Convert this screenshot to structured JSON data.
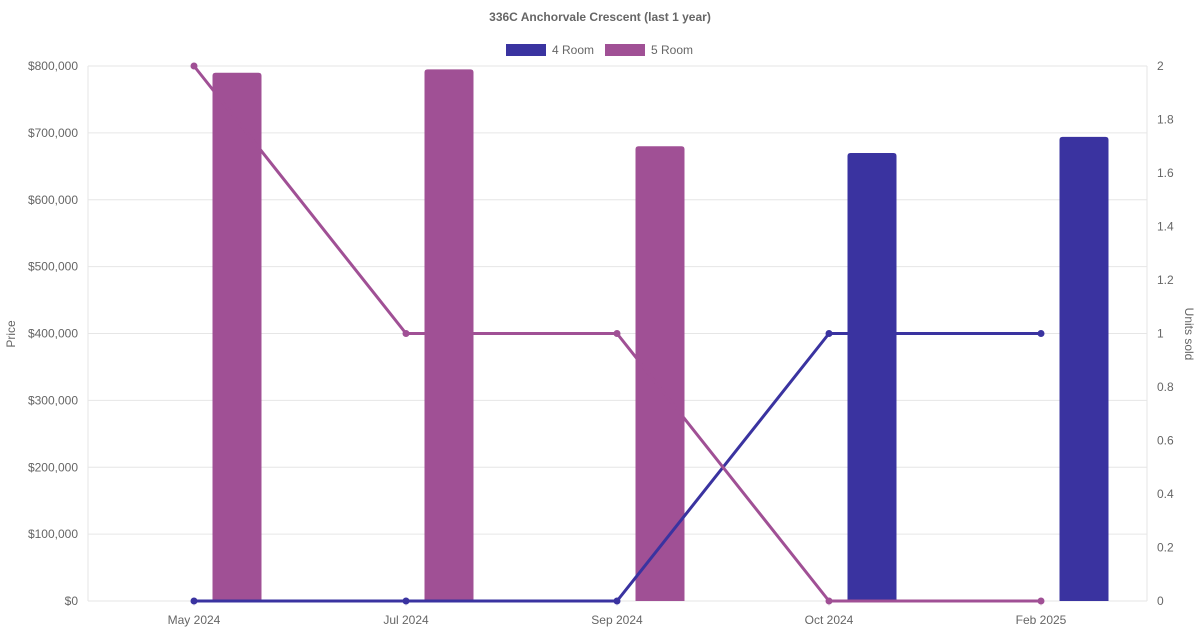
{
  "chart_data": {
    "type": "bar",
    "title": "336C Anchorvale Crescent (last 1 year)",
    "categories": [
      "May 2024",
      "Jul 2024",
      "Sep 2024",
      "Oct 2024",
      "Feb 2025"
    ],
    "y_left": {
      "label": "Price",
      "min": 0,
      "max": 800000,
      "step": 100000,
      "tick_labels": [
        "$0",
        "$100,000",
        "$200,000",
        "$300,000",
        "$400,000",
        "$500,000",
        "$600,000",
        "$700,000",
        "$800,000"
      ]
    },
    "y_right": {
      "label": "Units sold",
      "min": 0,
      "max": 2,
      "step": 0.2,
      "tick_labels": [
        "0",
        "0.2",
        "0.4",
        "0.6",
        "0.8",
        "1",
        "1.2",
        "1.4",
        "1.6",
        "1.8",
        "2"
      ]
    },
    "legend_position": "top",
    "grid": true,
    "series": [
      {
        "name": "4 Room",
        "color": "#3a33a0",
        "price": [
          null,
          null,
          null,
          670000,
          694000
        ],
        "units_sold": [
          0,
          0,
          0,
          1,
          1
        ]
      },
      {
        "name": "5 Room",
        "color": "#a05095",
        "price": [
          790000,
          795000,
          680000,
          null,
          null
        ],
        "units_sold": [
          2,
          1,
          1,
          0,
          0
        ]
      }
    ]
  }
}
